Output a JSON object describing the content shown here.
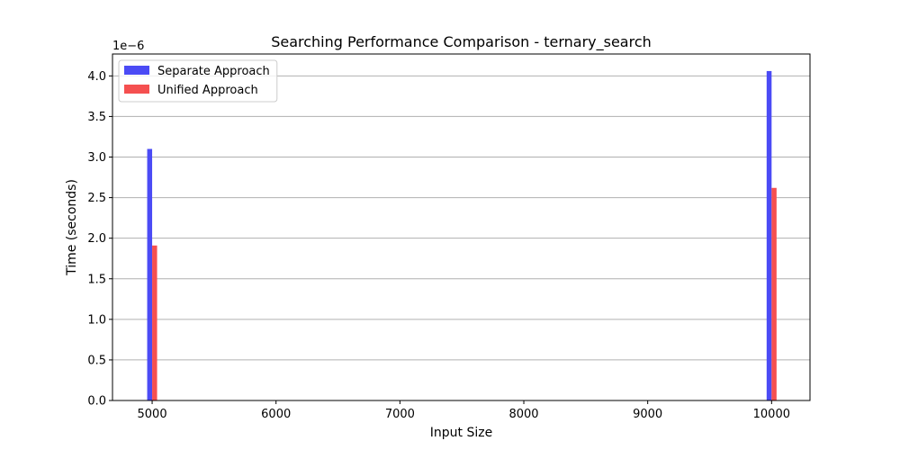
{
  "chart_data": {
    "type": "bar",
    "title": "Searching Performance Comparison - ternary_search",
    "xlabel": "Input Size",
    "ylabel": "Time (seconds)",
    "offset_text": "1e−6",
    "x_ticks": [
      5000,
      6000,
      7000,
      8000,
      9000,
      10000
    ],
    "xlim": [
      4680,
      10310
    ],
    "y_ticks": [
      "0.0",
      "0.5",
      "1.0",
      "1.5",
      "2.0",
      "2.5",
      "3.0",
      "3.5",
      "4.0"
    ],
    "ylim": [
      0,
      4.27
    ],
    "grid": "y",
    "legend_position": "top-left",
    "x": [
      5000,
      10000
    ],
    "series": [
      {
        "name": "Separate Approach",
        "color": "#4b4bf5",
        "values": [
          3.1,
          4.06
        ]
      },
      {
        "name": "Unified Approach",
        "color": "#f55050",
        "values": [
          1.91,
          2.62
        ]
      }
    ]
  }
}
